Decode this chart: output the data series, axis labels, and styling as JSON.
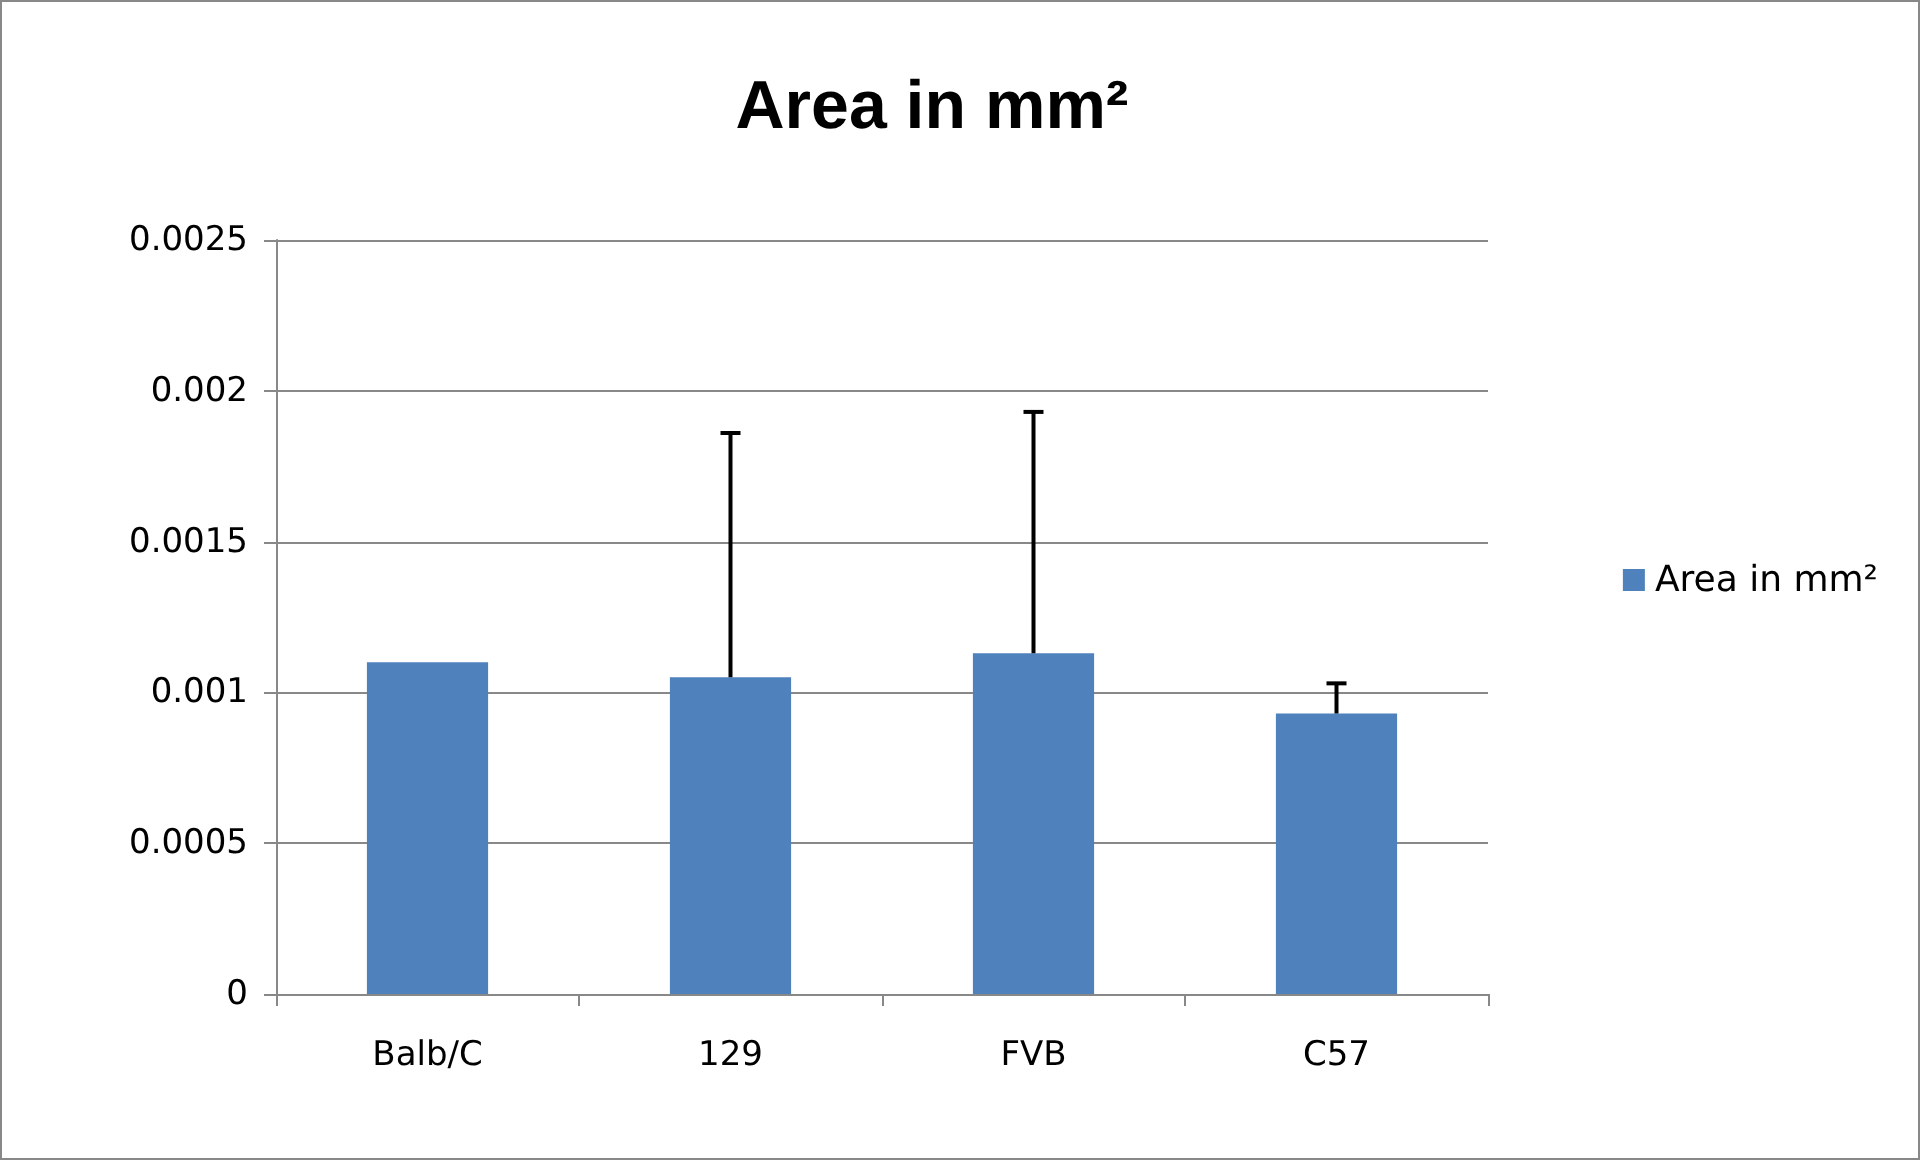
{
  "chart_data": {
    "type": "bar",
    "title": "Area in mm²",
    "categories": [
      "Balb/C",
      "129",
      "FVB",
      "C57"
    ],
    "series": [
      {
        "name": "Area in mm²",
        "color": "#4f81bd",
        "values": [
          0.0011,
          0.00105,
          0.00113,
          0.00093
        ],
        "errors": [
          null,
          [
            0.00105,
            0.00186
          ],
          [
            0.00113,
            0.00193
          ],
          [
            0.00093,
            0.00103
          ]
        ]
      }
    ],
    "ylim": [
      0,
      0.0025
    ],
    "yticks": [
      0,
      0.0005,
      0.001,
      0.0015,
      0.002,
      0.0025
    ],
    "grid": "y",
    "legend": "right"
  }
}
